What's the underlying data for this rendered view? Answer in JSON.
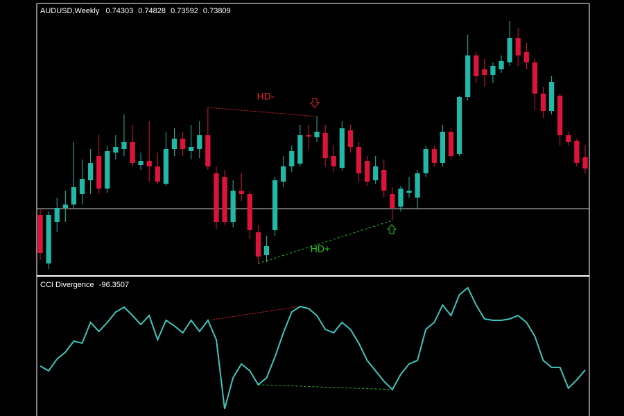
{
  "chart_data": [
    {
      "type": "candlestick",
      "title": "AUDUSD,Weekly",
      "open": [
        0.718,
        0.697,
        0.715,
        0.721,
        0.7225,
        0.727,
        0.733,
        0.7435,
        0.7294,
        0.745,
        0.7465,
        0.7495,
        0.7396,
        0.7414,
        0.739,
        0.7315,
        0.7465,
        0.751,
        0.7456,
        0.7465,
        0.7525,
        0.736,
        0.7345,
        0.715,
        0.7285,
        0.727,
        0.7105,
        0.7006,
        0.7114,
        0.7324,
        0.739,
        0.7402,
        0.7525,
        0.7516,
        0.7534,
        0.7435,
        0.7384,
        0.7546,
        0.7474,
        0.7414,
        0.733,
        0.7375,
        0.727,
        0.7216,
        0.7276,
        0.7255,
        0.736,
        0.7465,
        0.7405,
        0.754,
        0.7444,
        0.769,
        0.787,
        0.781,
        0.7786,
        0.781,
        0.784,
        0.7945,
        0.7885,
        0.784,
        0.7705,
        0.763,
        0.7696,
        0.7525,
        0.7501,
        0.74303
      ],
      "high": [
        0.721,
        0.7195,
        0.7255,
        0.7285,
        0.7495,
        0.742,
        0.7465,
        0.7525,
        0.748,
        0.7525,
        0.7615,
        0.757,
        0.745,
        0.7585,
        0.745,
        0.754,
        0.7555,
        0.754,
        0.757,
        0.7585,
        0.7645,
        0.739,
        0.7375,
        0.733,
        0.736,
        0.7285,
        0.7135,
        0.709,
        0.7345,
        0.7435,
        0.748,
        0.757,
        0.757,
        0.7606,
        0.757,
        0.748,
        0.7585,
        0.757,
        0.7495,
        0.7435,
        0.7435,
        0.742,
        0.73,
        0.7306,
        0.7345,
        0.7375,
        0.748,
        0.748,
        0.757,
        0.7555,
        0.7696,
        0.796,
        0.7885,
        0.7855,
        0.784,
        0.787,
        0.802,
        0.799,
        0.7924,
        0.7855,
        0.7735,
        0.778,
        0.7705,
        0.754,
        0.751,
        0.74828
      ],
      "low": [
        0.6985,
        0.6946,
        0.7105,
        0.715,
        0.721,
        0.7225,
        0.727,
        0.727,
        0.7276,
        0.742,
        0.7435,
        0.739,
        0.7375,
        0.7324,
        0.7315,
        0.7306,
        0.7435,
        0.7435,
        0.742,
        0.7426,
        0.7375,
        0.712,
        0.7135,
        0.7126,
        0.724,
        0.7075,
        0.697,
        0.6976,
        0.709,
        0.73,
        0.7366,
        0.739,
        0.7465,
        0.7495,
        0.739,
        0.7366,
        0.7372,
        0.745,
        0.7324,
        0.7306,
        0.7315,
        0.7255,
        0.7156,
        0.7195,
        0.7255,
        0.7204,
        0.7345,
        0.739,
        0.739,
        0.742,
        0.7435,
        0.7675,
        0.775,
        0.7735,
        0.775,
        0.7795,
        0.7825,
        0.7825,
        0.781,
        0.7636,
        0.76,
        0.7615,
        0.748,
        0.748,
        0.739,
        0.73592
      ],
      "close": [
        0.7015,
        0.718,
        0.721,
        0.7225,
        0.73,
        0.7336,
        0.7405,
        0.7294,
        0.7456,
        0.7474,
        0.7495,
        0.7405,
        0.7414,
        0.739,
        0.7324,
        0.7465,
        0.751,
        0.7465,
        0.7474,
        0.7525,
        0.739,
        0.715,
        0.715,
        0.7285,
        0.727,
        0.7114,
        0.7,
        0.7045,
        0.733,
        0.739,
        0.7456,
        0.7525,
        0.7519,
        0.754,
        0.7426,
        0.739,
        0.7555,
        0.7474,
        0.736,
        0.7324,
        0.739,
        0.7285,
        0.721,
        0.7294,
        0.7285,
        0.736,
        0.7465,
        0.7405,
        0.754,
        0.7435,
        0.769,
        0.787,
        0.778,
        0.7786,
        0.7825,
        0.7846,
        0.7945,
        0.787,
        0.784,
        0.7705,
        0.763,
        0.7756,
        0.7525,
        0.7495,
        0.7405,
        0.73809
      ],
      "up_color": "#22b8a8",
      "down_color": "#dc143c",
      "ylim": [
        0.6925,
        0.808
      ],
      "hline": 0.7207,
      "annotations": [
        {
          "text": "HD-",
          "color": "#e8252c"
        },
        {
          "text": "HD+",
          "color": "#22c822"
        }
      ]
    },
    {
      "type": "line",
      "title": "CCI Divergence",
      "color": "#3cc8bc",
      "ylim": [
        -238,
        196
      ],
      "values": [
        -83.6,
        -99,
        -61.6,
        -39.6,
        -4.4,
        -11,
        55,
        26.4,
        55,
        88,
        103.4,
        77,
        48.4,
        77,
        0,
        61.6,
        44,
        22,
        61.6,
        26.4,
        61.6,
        0,
        -220,
        -121,
        -77,
        -99,
        -143,
        -121,
        -55,
        22,
        88,
        105.6,
        99,
        77,
        33,
        22,
        55,
        33,
        -11,
        -66,
        -99,
        -132,
        -158.4,
        -110,
        -77,
        -66,
        33,
        55,
        110,
        77,
        143,
        165,
        110,
        66,
        61.6,
        61.6,
        66,
        77,
        55,
        11,
        -66,
        -88,
        -88,
        -154,
        -127.6,
        -96.3507
      ]
    }
  ]
}
